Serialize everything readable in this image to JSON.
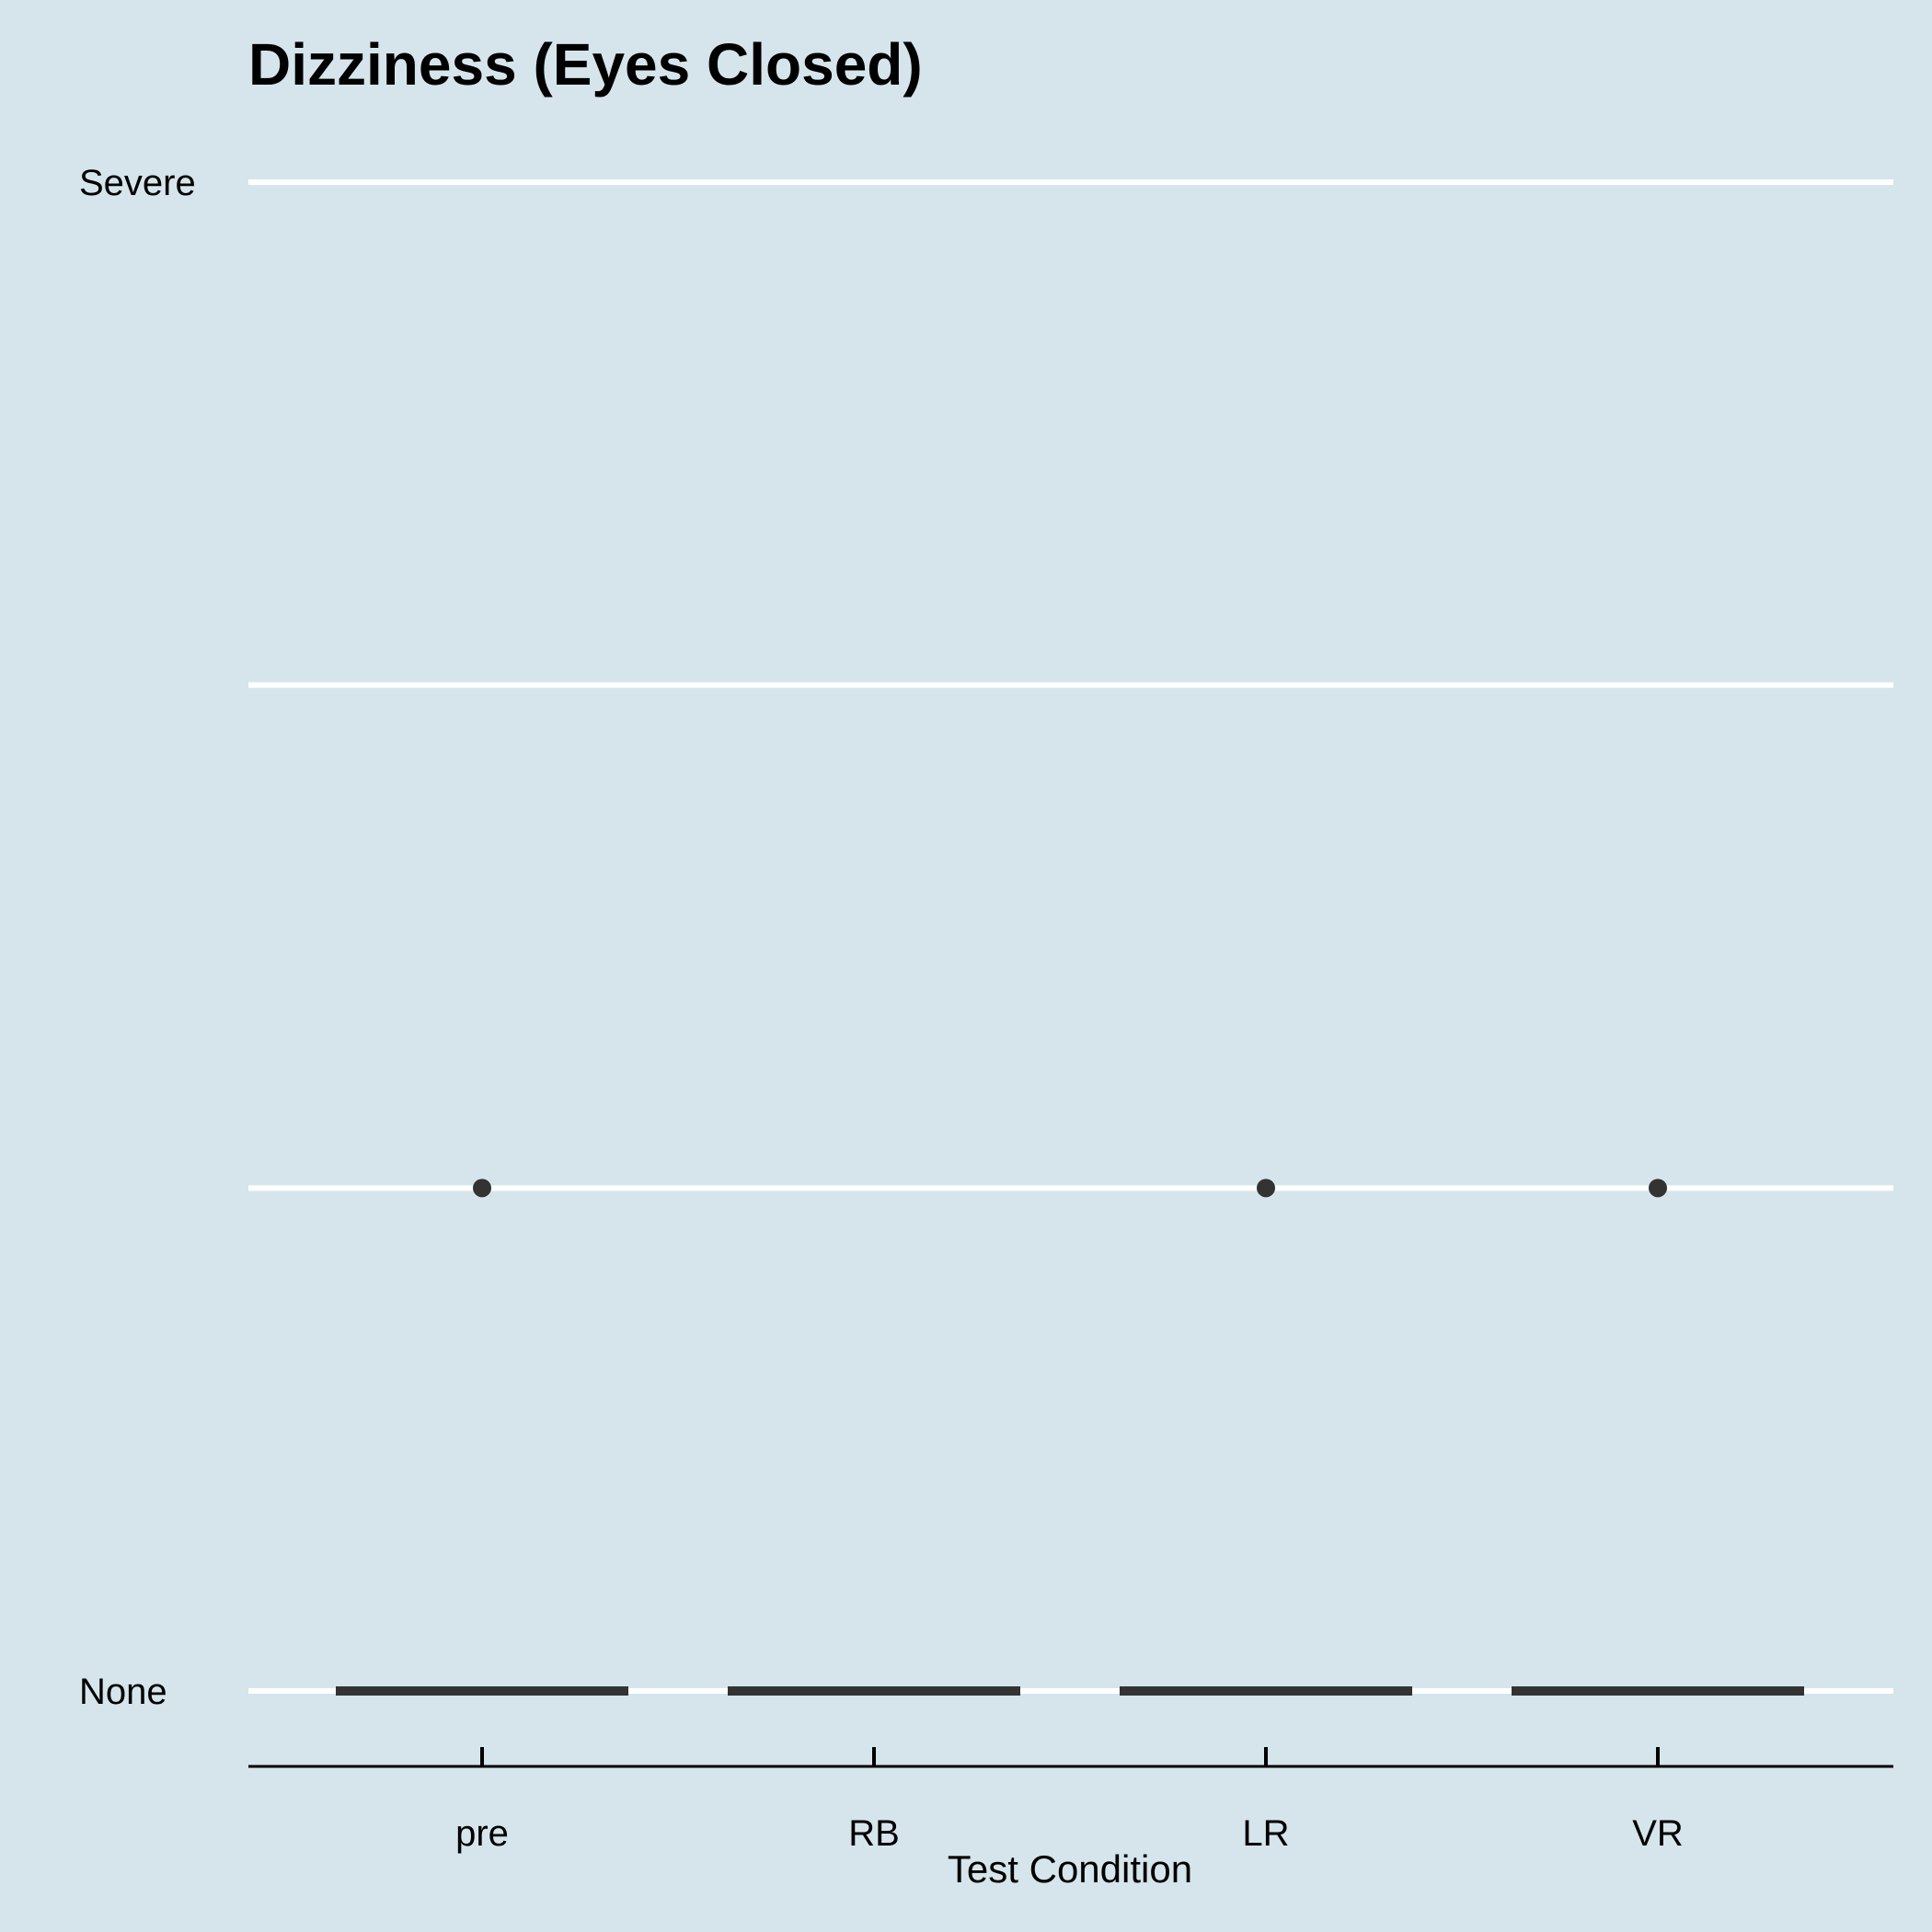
{
  "colors": {
    "background": "#d6e5ec",
    "gridline": "#ffffff",
    "mark": "#333333",
    "axis": "#000000"
  },
  "chart_data": {
    "type": "box",
    "title": "Dizziness (Eyes Closed)",
    "xlabel": "Test Condition",
    "ylabel": "",
    "categories": [
      "pre",
      "RB",
      "LR",
      "VR"
    ],
    "ylim": [
      0,
      3
    ],
    "y_ticks": [
      {
        "value": 0,
        "label": "None"
      },
      {
        "value": 1,
        "label": ""
      },
      {
        "value": 2,
        "label": ""
      },
      {
        "value": 3,
        "label": "Severe"
      }
    ],
    "grid": "horizontal",
    "boxes": [
      {
        "category": "pre",
        "median": 0,
        "q1": 0,
        "q3": 0,
        "outliers": [
          1
        ]
      },
      {
        "category": "RB",
        "median": 0,
        "q1": 0,
        "q3": 0,
        "outliers": []
      },
      {
        "category": "LR",
        "median": 0,
        "q1": 0,
        "q3": 0,
        "outliers": [
          1
        ]
      },
      {
        "category": "VR",
        "median": 0,
        "q1": 0,
        "q3": 0,
        "outliers": [
          1
        ]
      }
    ]
  }
}
